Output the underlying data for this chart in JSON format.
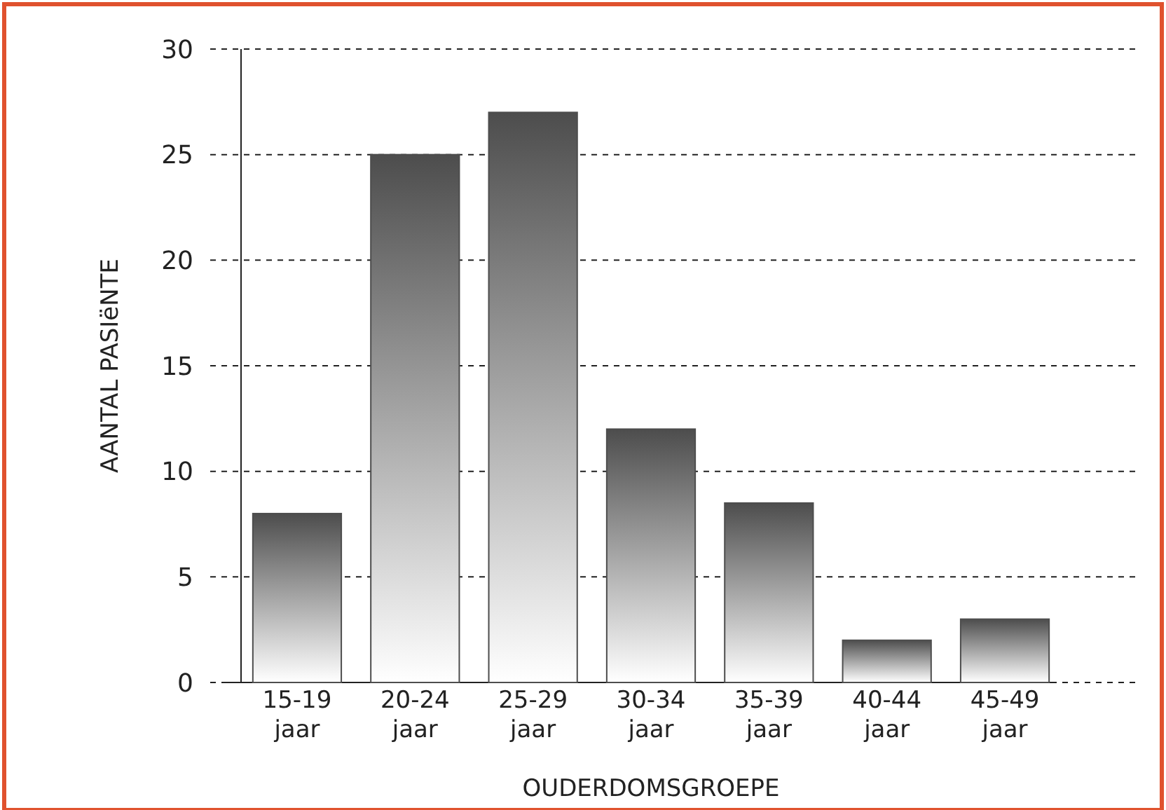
{
  "chart_data": {
    "type": "bar",
    "xlabel": "OUDERDOMSGROEPE",
    "ylabel": "AANTAL PASIëNTE",
    "categories": [
      "15-19 jaar",
      "20-24 jaar",
      "25-29 jaar",
      "30-34 jaar",
      "35-39 jaar",
      "40-44 jaar",
      "45-49 jaar"
    ],
    "values": [
      8,
      25,
      27,
      12,
      8.5,
      2,
      3
    ],
    "color": "#4d4d4d",
    "ylim": [
      0,
      30
    ],
    "yticks": [
      0,
      5,
      10,
      15,
      20,
      25,
      30
    ],
    "grid": "y"
  }
}
